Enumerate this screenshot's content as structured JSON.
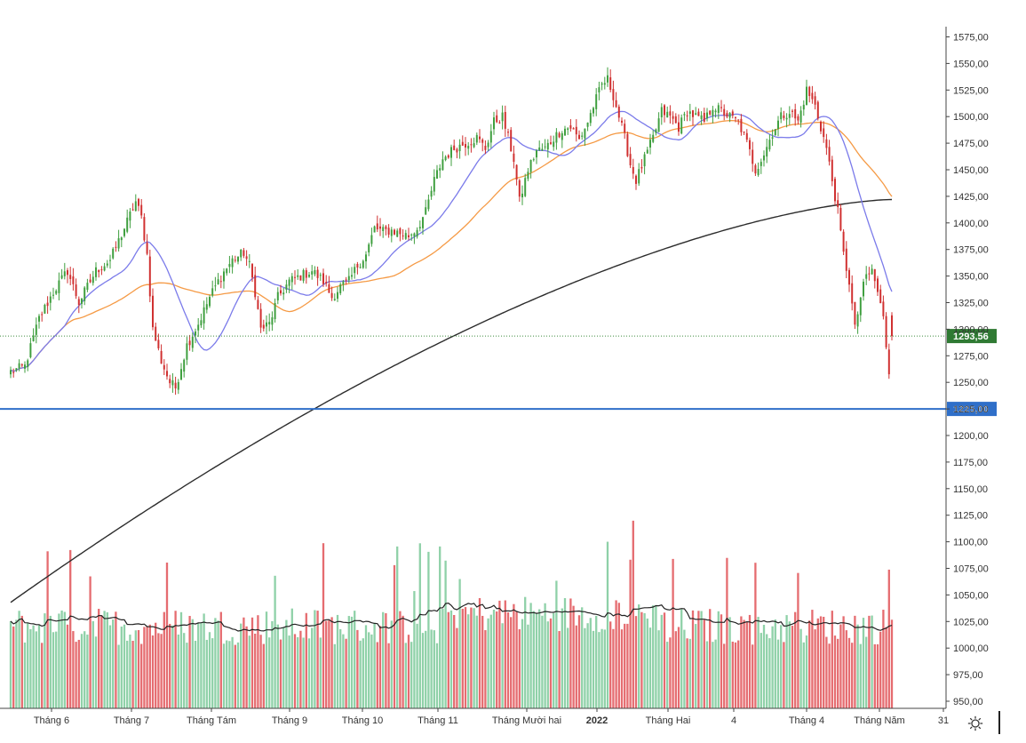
{
  "colors": {
    "up": "#3f9f3f",
    "down": "#d03030",
    "vol_up": "#8fd1a8",
    "vol_down": "#e56c70",
    "sma_fast": "#7b7bea",
    "sma_mid": "#f59a45",
    "sma_slow": "#2c2c2c",
    "support_line": "#2f6fc9",
    "last_price_tag": "#2f7a33",
    "support_tag": "#2f6fc9",
    "dotted_line": "#3c8a3c"
  },
  "chart_data": {
    "type": "candlestick",
    "y_axis": {
      "range": [
        950,
        1580
      ],
      "ticks": [
        "950,00",
        "975,00",
        "1000,00",
        "1025,00",
        "1050,00",
        "1075,00",
        "1100,00",
        "1125,00",
        "1150,00",
        "1175,00",
        "1200,00",
        "1225,00",
        "1250,00",
        "1275,00",
        "1300,00",
        "1325,00",
        "1350,00",
        "1375,00",
        "1400,00",
        "1425,00",
        "1450,00",
        "1475,00",
        "1500,00",
        "1525,00",
        "1550,00",
        "1575,00"
      ]
    },
    "x_axis": {
      "labels": [
        {
          "text": "Tháng 6",
          "bold": false
        },
        {
          "text": "Tháng 7",
          "bold": false
        },
        {
          "text": "Tháng Tám",
          "bold": false
        },
        {
          "text": "Tháng 9",
          "bold": false
        },
        {
          "text": "Tháng 10",
          "bold": false
        },
        {
          "text": "Tháng 11",
          "bold": false
        },
        {
          "text": "Tháng Mười hai",
          "bold": false
        },
        {
          "text": "2022",
          "bold": true
        },
        {
          "text": "Tháng Hai",
          "bold": false
        },
        {
          "text": "4",
          "bold": false
        },
        {
          "text": "Tháng 4",
          "bold": false
        },
        {
          "text": "Tháng Năm",
          "bold": false
        },
        {
          "text": "31",
          "bold": false
        }
      ]
    },
    "price_anchors": [
      [
        0,
        1260
      ],
      [
        5,
        1265
      ],
      [
        10,
        1310
      ],
      [
        15,
        1335
      ],
      [
        20,
        1355
      ],
      [
        24,
        1325
      ],
      [
        30,
        1355
      ],
      [
        35,
        1365
      ],
      [
        40,
        1395
      ],
      [
        44,
        1420
      ],
      [
        46,
        1405
      ],
      [
        48,
        1370
      ],
      [
        50,
        1300
      ],
      [
        53,
        1270
      ],
      [
        56,
        1250
      ],
      [
        58,
        1245
      ],
      [
        62,
        1285
      ],
      [
        66,
        1305
      ],
      [
        70,
        1330
      ],
      [
        74,
        1350
      ],
      [
        78,
        1365
      ],
      [
        82,
        1372
      ],
      [
        84,
        1360
      ],
      [
        86,
        1335
      ],
      [
        88,
        1300
      ],
      [
        91,
        1305
      ],
      [
        94,
        1330
      ],
      [
        98,
        1345
      ],
      [
        102,
        1350
      ],
      [
        106,
        1355
      ],
      [
        110,
        1345
      ],
      [
        113,
        1330
      ],
      [
        116,
        1340
      ],
      [
        119,
        1345
      ],
      [
        122,
        1360
      ],
      [
        125,
        1370
      ],
      [
        128,
        1395
      ],
      [
        131,
        1392
      ],
      [
        134,
        1393
      ],
      [
        137,
        1390
      ],
      [
        140,
        1388
      ],
      [
        143,
        1395
      ],
      [
        146,
        1410
      ],
      [
        149,
        1440
      ],
      [
        152,
        1460
      ],
      [
        156,
        1470
      ],
      [
        160,
        1475
      ],
      [
        164,
        1480
      ],
      [
        167,
        1470
      ],
      [
        170,
        1495
      ],
      [
        173,
        1500
      ],
      [
        175,
        1480
      ],
      [
        177,
        1460
      ],
      [
        179,
        1420
      ],
      [
        182,
        1450
      ],
      [
        185,
        1468
      ],
      [
        188,
        1470
      ],
      [
        191,
        1480
      ],
      [
        194,
        1488
      ],
      [
        197,
        1490
      ],
      [
        200,
        1478
      ],
      [
        203,
        1495
      ],
      [
        205,
        1510
      ],
      [
        208,
        1530
      ],
      [
        210,
        1535
      ],
      [
        212,
        1520
      ],
      [
        214,
        1500
      ],
      [
        216,
        1480
      ],
      [
        218,
        1455
      ],
      [
        220,
        1440
      ],
      [
        223,
        1460
      ],
      [
        226,
        1480
      ],
      [
        229,
        1505
      ],
      [
        232,
        1500
      ],
      [
        235,
        1490
      ],
      [
        238,
        1505
      ],
      [
        241,
        1500
      ],
      [
        244,
        1495
      ],
      [
        247,
        1510
      ],
      [
        250,
        1505
      ],
      [
        253,
        1500
      ],
      [
        256,
        1495
      ],
      [
        259,
        1475
      ],
      [
        262,
        1450
      ],
      [
        265,
        1465
      ],
      [
        268,
        1485
      ],
      [
        271,
        1500
      ],
      [
        274,
        1505
      ],
      [
        277,
        1495
      ],
      [
        280,
        1525
      ],
      [
        283,
        1510
      ],
      [
        285,
        1490
      ],
      [
        287,
        1470
      ],
      [
        289,
        1440
      ],
      [
        291,
        1410
      ],
      [
        293,
        1370
      ],
      [
        295,
        1345
      ],
      [
        297,
        1300
      ],
      [
        299,
        1330
      ],
      [
        301,
        1350
      ],
      [
        303,
        1355
      ],
      [
        305,
        1335
      ],
      [
        307,
        1310
      ],
      [
        309,
        1260
      ],
      [
        310,
        1294
      ]
    ],
    "last_price": 1293.56,
    "support_level": 1225.0,
    "support_label": "1225,00",
    "last_price_label": "1293,56",
    "indicators": [
      "SMA fast",
      "SMA mid",
      "SMA slow",
      "Volume",
      "Volume MA"
    ]
  }
}
